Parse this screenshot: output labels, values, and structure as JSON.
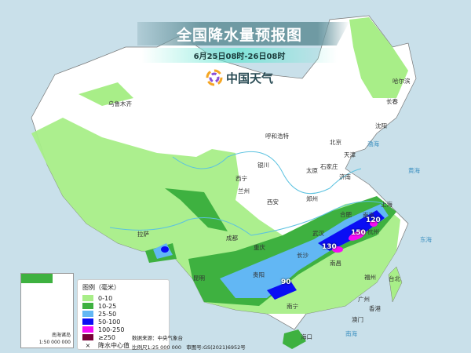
{
  "header": {
    "title": "全国降水量预报图",
    "subtitle": "6月25日08时-26日08时"
  },
  "logo": {
    "text": "中国天气",
    "icon": "pinwheel-logo"
  },
  "legend": {
    "heading": "图例（毫米）",
    "items": [
      {
        "label": "0-10",
        "color": "#a8ee88"
      },
      {
        "label": "10-25",
        "color": "#3eb140"
      },
      {
        "label": "25-50",
        "color": "#62b7f4"
      },
      {
        "label": "50-100",
        "color": "#0a0ef4"
      },
      {
        "label": "100-250",
        "color": "#f50cf4"
      },
      {
        "label": "≥250",
        "color": "#7a0038"
      }
    ],
    "center_marker": "×",
    "center_label": "降水中心值"
  },
  "source": {
    "data_source": "数据来源：中央气象台",
    "scale": "比例尺1:25 000 000",
    "approval": "审图号:GS(2021)6952号"
  },
  "inset": {
    "title": "南海诸岛",
    "scale": "1:50 000 000"
  },
  "cities": [
    "乌鲁木齐",
    "哈尔滨",
    "长春",
    "沈阳",
    "呼和浩特",
    "北京",
    "天津",
    "石家庄",
    "太原",
    "济南",
    "银川",
    "西宁",
    "兰州",
    "西安",
    "郑州",
    "合肥",
    "南京",
    "上海",
    "杭州",
    "武汉",
    "长沙",
    "南昌",
    "成都",
    "重庆",
    "拉萨",
    "贵阳",
    "昆明",
    "福州",
    "台北",
    "广州",
    "香港",
    "澳门",
    "南宁",
    "海口"
  ],
  "rain_centers": [
    "120",
    "150",
    "130",
    "90"
  ],
  "seas": [
    "渤海",
    "黄海",
    "东海",
    "南海"
  ]
}
